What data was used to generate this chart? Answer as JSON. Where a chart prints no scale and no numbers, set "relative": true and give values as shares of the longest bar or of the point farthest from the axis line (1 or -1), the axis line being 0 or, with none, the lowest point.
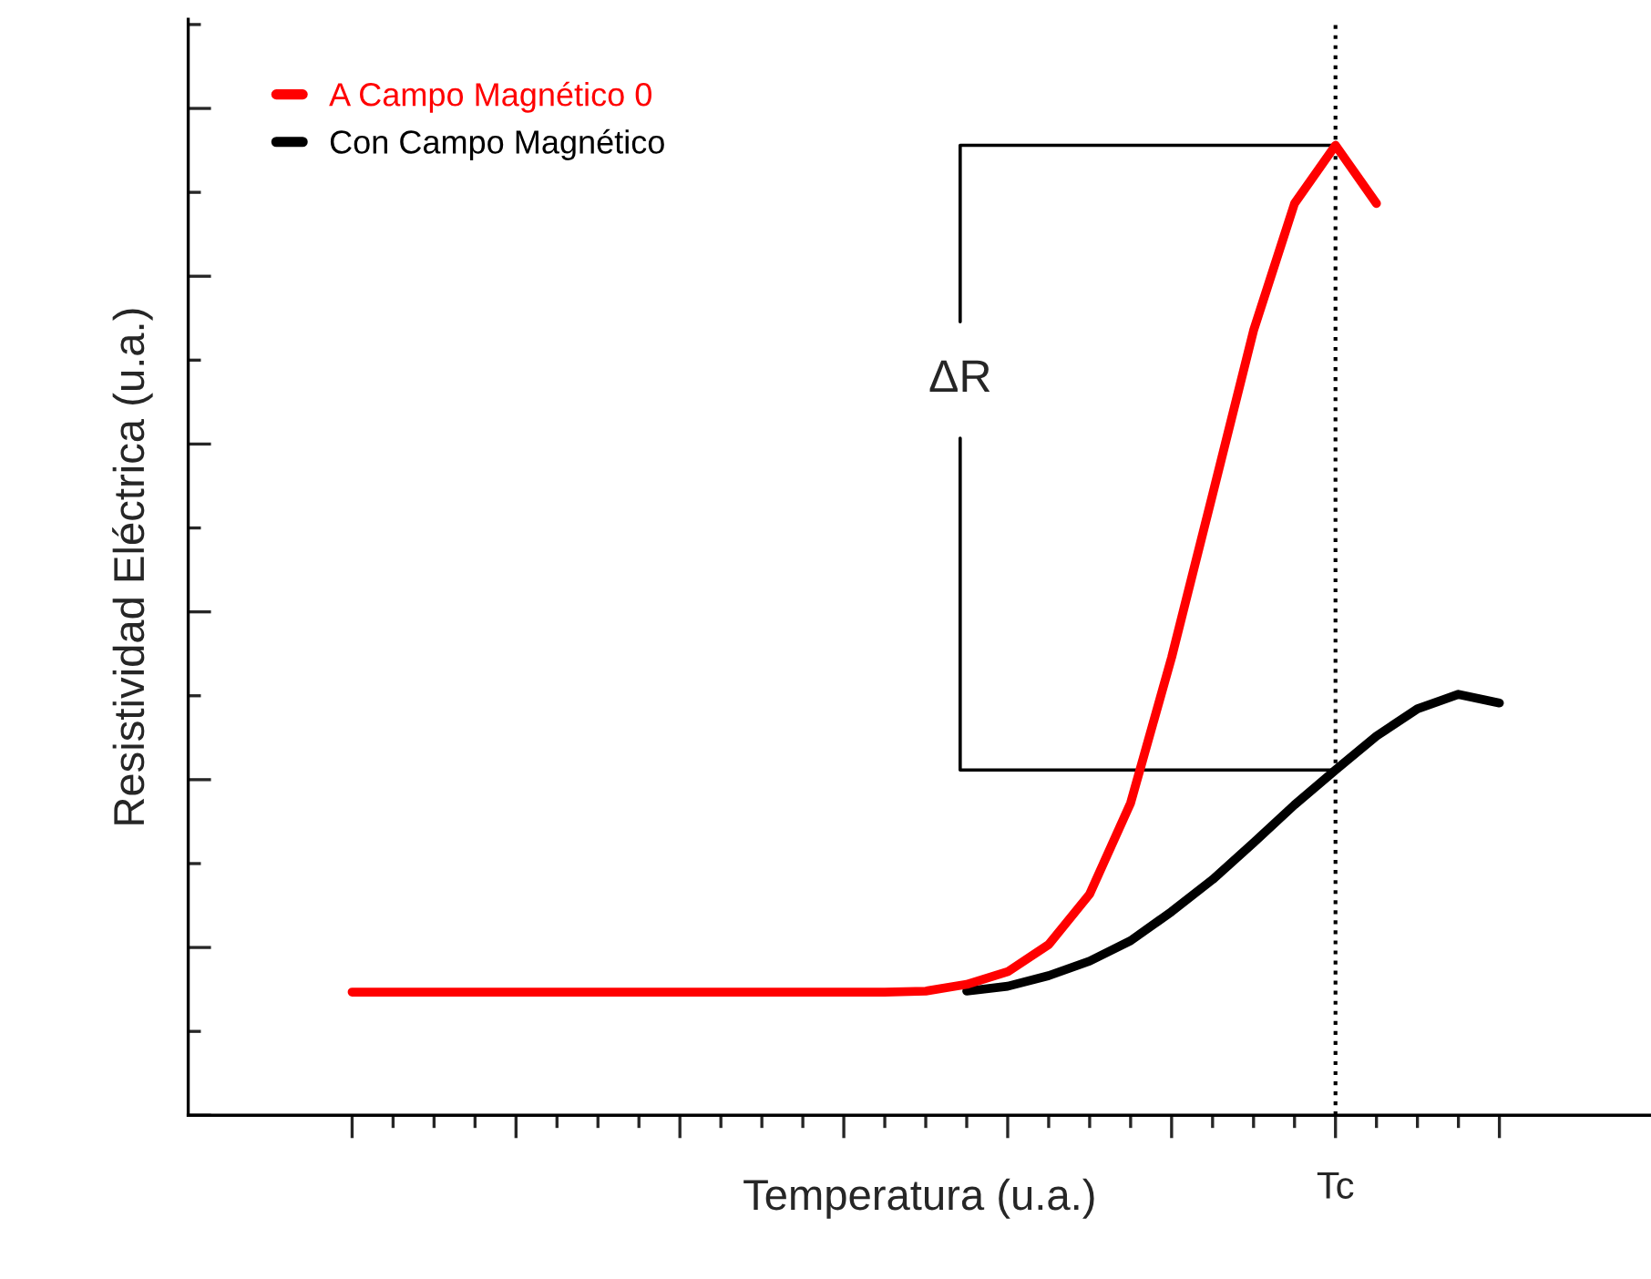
{
  "chart_data": {
    "type": "line",
    "relative": true,
    "xlabel": "Temperatura (u.a.)",
    "ylabel": "Resistividad Eléctrica (u.a.)",
    "categories": [
      null,
      null,
      null,
      null,
      null,
      null,
      null,
      null,
      null,
      null,
      null,
      null,
      null,
      null,
      null,
      null,
      null,
      null,
      null,
      null,
      null,
      null,
      null,
      null,
      null,
      null,
      null,
      null,
      null
    ],
    "series": [
      {
        "name": "A Campo Magnético 0",
        "color": "#ff0000",
        "values": [
          0.127,
          0.127,
          0.127,
          0.127,
          0.127,
          0.127,
          0.127,
          0.127,
          0.127,
          0.127,
          0.127,
          0.127,
          0.127,
          0.127,
          0.128,
          0.135,
          0.148,
          0.176,
          0.228,
          0.322,
          0.472,
          0.64,
          0.809,
          0.94,
          1.0,
          0.94,
          null,
          null,
          null
        ]
      },
      {
        "name": "Con Campo Magnético",
        "color": "#000000",
        "values": [
          null,
          null,
          null,
          null,
          null,
          null,
          null,
          null,
          null,
          null,
          null,
          null,
          null,
          null,
          null,
          0.128,
          0.133,
          0.144,
          0.159,
          0.18,
          0.21,
          0.243,
          0.281,
          0.32,
          0.356,
          0.391,
          0.419,
          0.434,
          0.425
        ]
      }
    ],
    "annotations": [
      "ΔR",
      "Tc"
    ],
    "legend": "top left",
    "grid": false,
    "line_style": "solid",
    "marker": "none"
  }
}
